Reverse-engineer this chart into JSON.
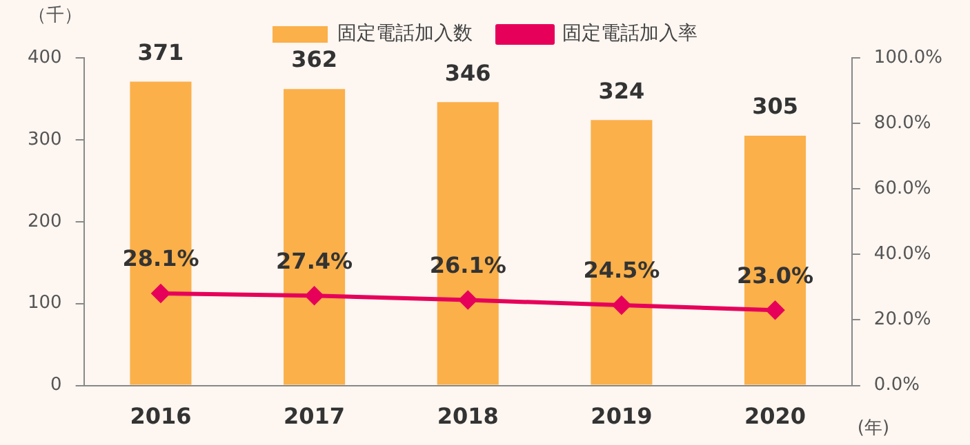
{
  "chart_data": {
    "type": "bar",
    "categories": [
      "2016",
      "2017",
      "2018",
      "2019",
      "2020"
    ],
    "series": [
      {
        "name": "固定電話加入数",
        "color": "#fbb04a",
        "values": [
          371,
          362,
          346,
          324,
          305
        ]
      },
      {
        "name": "固定電話加入率",
        "type": "line",
        "axis": "y2",
        "color": "#e6005a",
        "marker": "diamond",
        "values": [
          28.1,
          27.4,
          26.1,
          24.5,
          23.0
        ],
        "value_labels": [
          "28.1%",
          "27.4%",
          "26.1%",
          "24.5%",
          "23.0%"
        ]
      }
    ],
    "ylabel": "（千）",
    "xlabel": "(年)",
    "ylim": [
      0,
      400
    ],
    "yticks": [
      0,
      100,
      200,
      300,
      400
    ],
    "y2lim": [
      0,
      100
    ],
    "y2ticks": [
      {
        "value": 0,
        "label": "0.0%"
      },
      {
        "value": 20,
        "label": "20.0%"
      },
      {
        "value": 40,
        "label": "40.0%"
      },
      {
        "value": 60,
        "label": "60.0%"
      },
      {
        "value": 80,
        "label": "80.0%"
      },
      {
        "value": 100,
        "label": "100.0%"
      }
    ],
    "grid": false,
    "legend": "top",
    "data_labels": true
  }
}
